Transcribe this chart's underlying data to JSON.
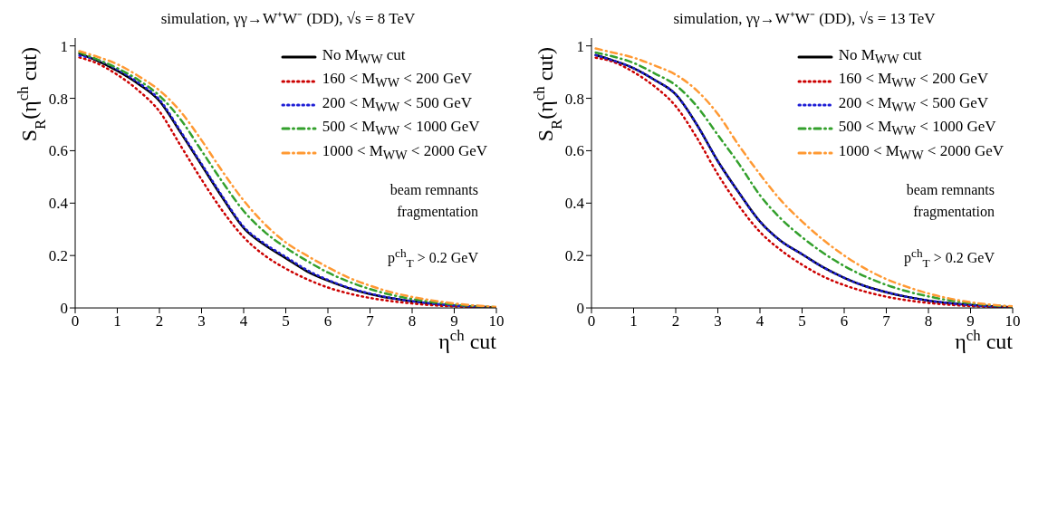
{
  "chart_data": [
    {
      "type": "line",
      "title": "simulation, γγ→W⁺W⁻ (DD),  √s = 8 TeV",
      "xlabel": "η$^{ch}$ cut",
      "ylabel": "S$_{R}$(η$^{ch}$ cut)",
      "x": [
        0.1,
        0.5,
        1,
        1.5,
        2,
        2.5,
        3,
        3.5,
        4,
        4.5,
        5,
        5.5,
        6,
        6.5,
        7,
        7.5,
        8,
        8.5,
        9,
        9.5,
        10
      ],
      "series": [
        {
          "name": "No M$_{WW}$ cut",
          "color": "#000000",
          "line_style": "solid",
          "values": [
            0.97,
            0.945,
            0.905,
            0.855,
            0.79,
            0.67,
            0.545,
            0.42,
            0.305,
            0.24,
            0.19,
            0.14,
            0.104,
            0.075,
            0.053,
            0.037,
            0.025,
            0.016,
            0.009,
            0.005,
            0.002
          ]
        },
        {
          "name": "160 < M$_{WW}$ < 200 GeV",
          "color": "#cc0000",
          "line_style": "dotted",
          "values": [
            0.956,
            0.935,
            0.89,
            0.83,
            0.75,
            0.62,
            0.49,
            0.37,
            0.27,
            0.2,
            0.15,
            0.11,
            0.078,
            0.055,
            0.038,
            0.026,
            0.017,
            0.01,
            0.006,
            0.003,
            0.001
          ]
        },
        {
          "name": "200 < M$_{WW}$ < 500 GeV",
          "color": "#1f1fd6",
          "line_style": "dotted",
          "values": [
            0.963,
            0.948,
            0.91,
            0.86,
            0.795,
            0.675,
            0.55,
            0.425,
            0.31,
            0.245,
            0.195,
            0.145,
            0.107,
            0.077,
            0.055,
            0.038,
            0.026,
            0.016,
            0.009,
            0.005,
            0.002
          ]
        },
        {
          "name": "500 < M$_{WW}$ < 1000 GeV",
          "color": "#33a02c",
          "line_style": "dashed",
          "values": [
            0.975,
            0.95,
            0.915,
            0.87,
            0.81,
            0.72,
            0.6,
            0.48,
            0.37,
            0.29,
            0.23,
            0.18,
            0.135,
            0.1,
            0.072,
            0.05,
            0.034,
            0.022,
            0.013,
            0.007,
            0.003
          ]
        },
        {
          "name": "1000 < M$_{WW}$ < 2000 GeV",
          "color": "#ff9933",
          "line_style": "dashed",
          "values": [
            0.98,
            0.96,
            0.93,
            0.885,
            0.83,
            0.75,
            0.64,
            0.52,
            0.41,
            0.32,
            0.25,
            0.2,
            0.155,
            0.115,
            0.085,
            0.06,
            0.042,
            0.028,
            0.017,
            0.009,
            0.004
          ]
        }
      ],
      "xlim": [
        0,
        10
      ],
      "xticks": [
        0,
        1,
        2,
        3,
        4,
        5,
        6,
        7,
        8,
        9,
        10
      ],
      "ylim": [
        0,
        1.03
      ],
      "yticks": [
        0,
        0.2,
        0.4,
        0.6,
        0.8,
        1
      ],
      "grid": false,
      "legend": "top right",
      "annotations": [
        "beam remnants fragmentation",
        "p$^{ch}$$_{T}$ > 0.2 GeV"
      ]
    },
    {
      "type": "line",
      "title": "simulation, γγ→W⁺W⁻ (DD),  √s = 13 TeV",
      "xlabel": "η$^{ch}$ cut",
      "ylabel": "S$_{R}$(η$^{ch}$ cut)",
      "x": [
        0.1,
        0.5,
        1,
        1.5,
        2,
        2.5,
        3,
        3.5,
        4,
        4.5,
        5,
        5.5,
        6,
        6.5,
        7,
        7.5,
        8,
        8.5,
        9,
        9.5,
        10
      ],
      "series": [
        {
          "name": "No M$_{WW}$ cut",
          "color": "#000000",
          "line_style": "solid",
          "values": [
            0.965,
            0.945,
            0.915,
            0.87,
            0.815,
            0.7,
            0.56,
            0.44,
            0.33,
            0.255,
            0.205,
            0.155,
            0.115,
            0.083,
            0.06,
            0.042,
            0.028,
            0.018,
            0.011,
            0.006,
            0.003
          ]
        },
        {
          "name": "160 < M$_{WW}$ < 200 GeV",
          "color": "#cc0000",
          "line_style": "dotted",
          "values": [
            0.955,
            0.94,
            0.9,
            0.845,
            0.77,
            0.65,
            0.51,
            0.39,
            0.29,
            0.22,
            0.165,
            0.12,
            0.087,
            0.062,
            0.043,
            0.029,
            0.019,
            0.012,
            0.007,
            0.004,
            0.002
          ]
        },
        {
          "name": "200 < M$_{WW}$ < 500 GeV",
          "color": "#1f1fd6",
          "line_style": "dotted",
          "values": [
            0.965,
            0.945,
            0.915,
            0.87,
            0.815,
            0.7,
            0.56,
            0.44,
            0.33,
            0.255,
            0.205,
            0.155,
            0.115,
            0.083,
            0.06,
            0.042,
            0.028,
            0.018,
            0.011,
            0.006,
            0.003
          ]
        },
        {
          "name": "500 < M$_{WW}$ < 1000 GeV",
          "color": "#33a02c",
          "line_style": "dashed",
          "values": [
            0.975,
            0.96,
            0.935,
            0.895,
            0.85,
            0.77,
            0.66,
            0.55,
            0.43,
            0.34,
            0.27,
            0.21,
            0.16,
            0.12,
            0.088,
            0.063,
            0.044,
            0.029,
            0.018,
            0.01,
            0.005
          ]
        },
        {
          "name": "1000 < M$_{WW}$ < 2000 GeV",
          "color": "#ff9933",
          "line_style": "dashed",
          "values": [
            0.99,
            0.975,
            0.955,
            0.925,
            0.89,
            0.83,
            0.74,
            0.62,
            0.51,
            0.41,
            0.33,
            0.26,
            0.2,
            0.15,
            0.11,
            0.08,
            0.055,
            0.036,
            0.022,
            0.012,
            0.006
          ]
        }
      ],
      "xlim": [
        0,
        10
      ],
      "xticks": [
        0,
        1,
        2,
        3,
        4,
        5,
        6,
        7,
        8,
        9,
        10
      ],
      "ylim": [
        0,
        1.03
      ],
      "yticks": [
        0,
        0.2,
        0.4,
        0.6,
        0.8,
        1
      ],
      "grid": false,
      "legend": "top right",
      "annotations": [
        "beam remnants fragmentation",
        "p$^{ch}$$_{T}$ > 0.2 GeV"
      ]
    }
  ]
}
